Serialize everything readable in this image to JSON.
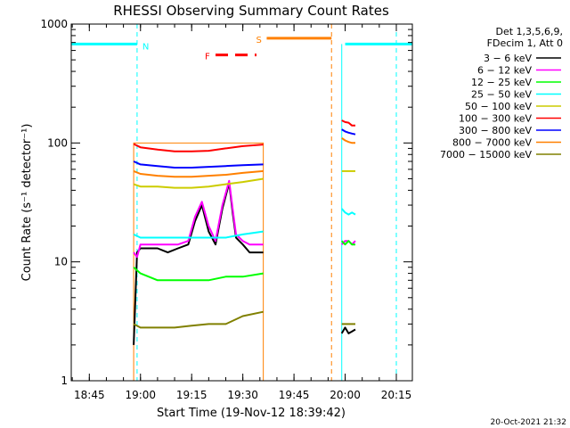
{
  "chart_data": {
    "type": "line",
    "title": "RHESSI Observing Summary Count Rates",
    "xlabel": "Start Time (19-Nov-12 18:39:42)",
    "ylabel": "Count Rate (s⁻¹ detector⁻¹)",
    "yscale": "log",
    "ylim": [
      1,
      1000
    ],
    "xlim": [
      "18:39:42",
      "20:19:42"
    ],
    "x_ticks": [
      "18:45",
      "19:00",
      "19:15",
      "19:30",
      "19:45",
      "20:00",
      "20:15"
    ],
    "y_ticks": [
      "1",
      "10",
      "100",
      "1000"
    ],
    "legend_header": [
      "Det 1,3,5,6,9,",
      "FDecim 1, Att 0"
    ],
    "legend_position": "right",
    "series": [
      {
        "name": "3 − 6 keV",
        "color": "#000000",
        "segments": [
          {
            "times": [
              "18:58",
              "18:59",
              "19:00",
              "19:02",
              "19:05",
              "19:08",
              "19:11",
              "19:14",
              "19:16",
              "19:18",
              "19:20",
              "19:22",
              "19:24",
              "19:26",
              "19:27",
              "19:28",
              "19:30",
              "19:32",
              "19:34",
              "19:36"
            ],
            "values": [
              2.0,
              12,
              13,
              13,
              13,
              12,
              13,
              14,
              22,
              30,
              18,
              14,
              28,
              46,
              26,
              16,
              14,
              12,
              12,
              12
            ]
          },
          {
            "times": [
              "19:59",
              "20:00",
              "20:01",
              "20:02",
              "20:03"
            ],
            "values": [
              2.5,
              2.8,
              2.5,
              2.6,
              2.7
            ]
          }
        ]
      },
      {
        "name": "6 − 12 keV",
        "color": "#ff00ff",
        "segments": [
          {
            "times": [
              "18:58",
              "18:59",
              "19:00",
              "19:02",
              "19:05",
              "19:08",
              "19:11",
              "19:14",
              "19:16",
              "19:18",
              "19:20",
              "19:22",
              "19:24",
              "19:26",
              "19:27",
              "19:28",
              "19:30",
              "19:32",
              "19:34",
              "19:36"
            ],
            "values": [
              12,
              11,
              14,
              14,
              14,
              14,
              14,
              15,
              24,
              32,
              20,
              15,
              30,
              48,
              28,
              17,
              15,
              14,
              14,
              14
            ]
          },
          {
            "times": [
              "19:59",
              "20:00",
              "20:01",
              "20:02",
              "20:03"
            ],
            "values": [
              14,
              15,
              15,
              14,
              15
            ]
          }
        ]
      },
      {
        "name": "12 − 25 keV",
        "color": "#00ff00",
        "segments": [
          {
            "times": [
              "18:58",
              "19:00",
              "19:05",
              "19:10",
              "19:15",
              "19:20",
              "19:25",
              "19:30",
              "19:36"
            ],
            "values": [
              9,
              8,
              7,
              7,
              7,
              7,
              7.5,
              7.5,
              8
            ]
          },
          {
            "times": [
              "19:59",
              "20:00",
              "20:01",
              "20:02",
              "20:03"
            ],
            "values": [
              15,
              14,
              15,
              14,
              14
            ]
          }
        ]
      },
      {
        "name": "25 − 50 keV",
        "color": "#00ffff",
        "segments": [
          {
            "times": [
              "18:58",
              "19:00",
              "19:05",
              "19:10",
              "19:15",
              "19:20",
              "19:25",
              "19:30",
              "19:36"
            ],
            "values": [
              17,
              16,
              16,
              16,
              16,
              16,
              16,
              17,
              18
            ]
          },
          {
            "times": [
              "19:59",
              "20:00",
              "20:01",
              "20:02",
              "20:03"
            ],
            "values": [
              28,
              26,
              25,
              26,
              25
            ]
          }
        ]
      },
      {
        "name": "50 − 100 keV",
        "color": "#cccc00",
        "segments": [
          {
            "times": [
              "18:58",
              "19:00",
              "19:05",
              "19:10",
              "19:15",
              "19:20",
              "19:25",
              "19:30",
              "19:36"
            ],
            "values": [
              45,
              43,
              43,
              42,
              42,
              43,
              45,
              47,
              50
            ]
          },
          {
            "times": [
              "19:59",
              "20:00",
              "20:01",
              "20:02",
              "20:03"
            ],
            "values": [
              58,
              58,
              58,
              58,
              58
            ]
          }
        ]
      },
      {
        "name": "100 − 300 keV",
        "color": "#ff0000",
        "segments": [
          {
            "times": [
              "18:58",
              "19:00",
              "19:05",
              "19:10",
              "19:15",
              "19:20",
              "19:25",
              "19:30",
              "19:36"
            ],
            "values": [
              98,
              92,
              88,
              85,
              85,
              86,
              90,
              94,
              97
            ]
          },
          {
            "times": [
              "19:59",
              "20:00",
              "20:01",
              "20:02",
              "20:03"
            ],
            "values": [
              155,
              150,
              148,
              140,
              140
            ]
          }
        ]
      },
      {
        "name": "300 − 800 keV",
        "color": "#0000ff",
        "segments": [
          {
            "times": [
              "18:58",
              "19:00",
              "19:05",
              "19:10",
              "19:15",
              "19:20",
              "19:25",
              "19:30",
              "19:36"
            ],
            "values": [
              70,
              66,
              64,
              62,
              62,
              63,
              64,
              65,
              66
            ]
          },
          {
            "times": [
              "19:59",
              "20:00",
              "20:01",
              "20:02",
              "20:03"
            ],
            "values": [
              130,
              125,
              122,
              120,
              118
            ]
          }
        ]
      },
      {
        "name": "800 − 7000 keV",
        "color": "#ff8000",
        "segments": [
          {
            "times": [
              "18:58",
              "19:00",
              "19:05",
              "19:10",
              "19:15",
              "19:20",
              "19:25",
              "19:30",
              "19:36"
            ],
            "values": [
              58,
              55,
              53,
              52,
              52,
              53,
              54,
              56,
              58
            ]
          },
          {
            "times": [
              "19:59",
              "20:00",
              "20:01",
              "20:02",
              "20:03"
            ],
            "values": [
              110,
              105,
              102,
              100,
              100
            ]
          }
        ]
      },
      {
        "name": "7000 − 15000 keV",
        "color": "#808000",
        "segments": [
          {
            "times": [
              "18:58",
              "19:00",
              "19:05",
              "19:10",
              "19:15",
              "19:20",
              "19:25",
              "19:30",
              "19:36"
            ],
            "values": [
              3,
              2.8,
              2.8,
              2.8,
              2.9,
              3,
              3,
              3.5,
              3.8
            ]
          },
          {
            "times": [
              "19:59",
              "20:00",
              "20:01",
              "20:02",
              "20:03"
            ],
            "values": [
              3,
              3,
              3,
              3,
              3
            ]
          }
        ]
      }
    ],
    "markers": [
      {
        "label": "N",
        "color": "#00ffff",
        "level": 680,
        "periods": [
          [
            "18:39:42",
            "18:59"
          ],
          [
            "20:00",
            "20:19:42"
          ]
        ],
        "dashed_boundaries": [
          "18:59",
          "20:15"
        ]
      },
      {
        "label": "S",
        "color": "#ff8000",
        "level": 760,
        "periods": [
          [
            "19:37",
            "19:56"
          ]
        ],
        "dashed_boundaries": [
          "19:56"
        ]
      },
      {
        "label": "F",
        "color": "#ff0000",
        "level": 550,
        "periods": [
          [
            "19:22",
            "19:34"
          ]
        ],
        "dashed": true
      }
    ],
    "rate_traces_outline": [
      {
        "color": "#ff8000",
        "times": [
          "18:58",
          "18:58",
          "19:36",
          "19:36"
        ],
        "values": [
          1,
          100,
          100,
          1
        ]
      },
      {
        "color": "#00ffff",
        "times": [
          "18:39:42",
          "18:39:42"
        ],
        "values": [
          1,
          680
        ]
      },
      {
        "color": "#00ffff",
        "times": [
          "19:59",
          "19:59"
        ],
        "values": [
          1,
          680
        ]
      }
    ],
    "footer_date": "20-Oct-2021 21:32"
  }
}
